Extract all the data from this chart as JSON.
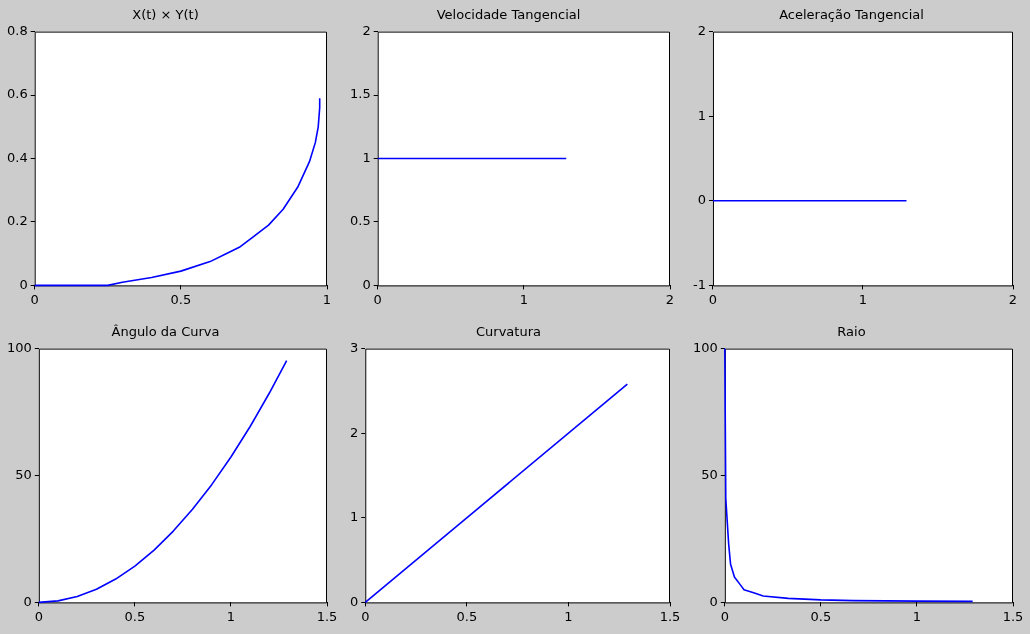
{
  "chart_data": [
    {
      "type": "line",
      "title": "X(t) × Y(t)",
      "x": [
        0,
        0.1,
        0.2,
        0.25,
        0.3,
        0.4,
        0.5,
        0.6,
        0.7,
        0.8,
        0.85,
        0.9,
        0.94,
        0.96,
        0.97,
        0.975,
        0.975
      ],
      "values": [
        0,
        0,
        0,
        0,
        0.01,
        0.025,
        0.045,
        0.075,
        0.12,
        0.19,
        0.24,
        0.31,
        0.39,
        0.45,
        0.5,
        0.56,
        0.59
      ],
      "color": "#0000ff",
      "xlim": [
        0,
        1
      ],
      "xticks": [
        0,
        0.5,
        1
      ],
      "ylim": [
        0,
        0.8
      ],
      "yticks": [
        0,
        0.2,
        0.4,
        0.6,
        0.8
      ]
    },
    {
      "type": "line",
      "title": "Velocidade Tangencial",
      "x": [
        0,
        1.29
      ],
      "values": [
        1,
        1
      ],
      "color": "#0000ff",
      "xlim": [
        0,
        2
      ],
      "xticks": [
        0,
        1,
        2
      ],
      "ylim": [
        0,
        2
      ],
      "yticks": [
        0,
        0.5,
        1,
        1.5,
        2
      ]
    },
    {
      "type": "line",
      "title": "Aceleração Tangencial",
      "x": [
        0,
        1.29
      ],
      "values": [
        0,
        0
      ],
      "color": "#0000ff",
      "xlim": [
        0,
        2
      ],
      "xticks": [
        0,
        1,
        2
      ],
      "ylim": [
        -1,
        2
      ],
      "yticks": [
        -1,
        0,
        1,
        2
      ]
    },
    {
      "type": "line",
      "title": "Ângulo da Curva",
      "x": [
        0,
        0.1,
        0.2,
        0.3,
        0.4,
        0.5,
        0.6,
        0.7,
        0.8,
        0.9,
        1,
        1.1,
        1.2,
        1.29
      ],
      "values": [
        0,
        0.6,
        2.3,
        5.2,
        9.2,
        14.3,
        20.6,
        28.1,
        36.7,
        46.4,
        57.3,
        69.3,
        82.5,
        95.3
      ],
      "color": "#0000ff",
      "xlim": [
        0,
        1.5
      ],
      "xticks": [
        0,
        0.5,
        1,
        1.5
      ],
      "ylim": [
        0,
        100
      ],
      "yticks": [
        0,
        50,
        100
      ]
    },
    {
      "type": "line",
      "title": "Curvatura",
      "x": [
        0,
        1.29
      ],
      "values": [
        0,
        2.58
      ],
      "color": "#0000ff",
      "xlim": [
        0,
        1.5
      ],
      "xticks": [
        0,
        0.5,
        1,
        1.5
      ],
      "ylim": [
        0,
        3
      ],
      "yticks": [
        0,
        1,
        2,
        3
      ]
    },
    {
      "type": "line",
      "title": "Raio",
      "x": [
        0,
        0.005,
        0.02,
        0.03,
        0.05,
        0.08,
        0.1,
        0.15,
        0.2,
        0.33,
        0.5,
        0.67,
        1,
        1.29
      ],
      "values": [
        100,
        41,
        23,
        15,
        10,
        7,
        5,
        3.8,
        2.5,
        1.6,
        1,
        0.7,
        0.5,
        0.4
      ],
      "color": "#0000ff",
      "xlim": [
        0,
        1.5
      ],
      "xticks": [
        0,
        0.5,
        1,
        1.5
      ],
      "ylim": [
        0,
        100
      ],
      "yticks": [
        0,
        50,
        100
      ]
    }
  ]
}
